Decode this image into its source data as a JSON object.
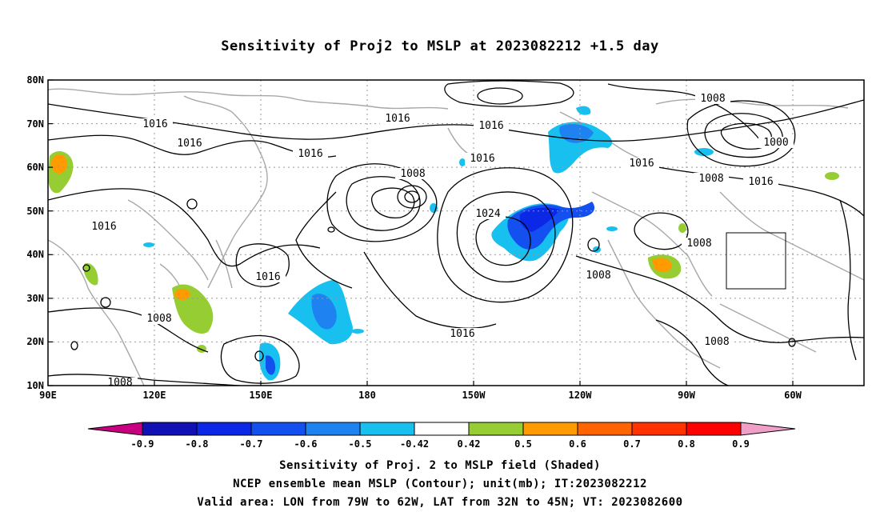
{
  "title": "Sensitivity of Proj2 to MSLP at 2023082212 +1.5 day",
  "lat_labels": [
    "80N",
    "70N",
    "60N",
    "50N",
    "40N",
    "30N",
    "20N",
    "10N"
  ],
  "lon_labels": [
    "90E",
    "120E",
    "150E",
    "180",
    "150W",
    "120W",
    "90W",
    "60W"
  ],
  "contour_labels": [
    "1016",
    "1016",
    "1016",
    "1016",
    "1016",
    "1016",
    "1016",
    "1016",
    "1016",
    "1016",
    "1008",
    "1008",
    "1008",
    "1008",
    "1008",
    "1008",
    "1008",
    "1024",
    "1000"
  ],
  "colorbar": {
    "labels": [
      "-0.9",
      "-0.8",
      "-0.7",
      "-0.6",
      "-0.5",
      "-0.42",
      "0.42",
      "0.5",
      "0.6",
      "0.7",
      "0.8",
      "0.9"
    ],
    "colors": [
      "#c8007f",
      "#1010b4",
      "#0a28e6",
      "#1450f0",
      "#1e82f0",
      "#18c0f0",
      "#ffffff",
      "#96cd32",
      "#ff9b00",
      "#ff6400",
      "#ff3200",
      "#ff0000",
      "#f0a0c8"
    ]
  },
  "valid_box": {
    "lon_min": -79,
    "lon_max": -62,
    "lat_min": 32,
    "lat_max": 45
  },
  "caption": {
    "line1": "Sensitivity of Proj. 2 to MSLP field (Shaded)",
    "line2": "NCEP ensemble mean MSLP (Contour); unit(mb); IT:2023082212",
    "line3": "Valid area: LON from 79W to 62W, LAT from 32N to 45N; VT: 2023082600"
  }
}
